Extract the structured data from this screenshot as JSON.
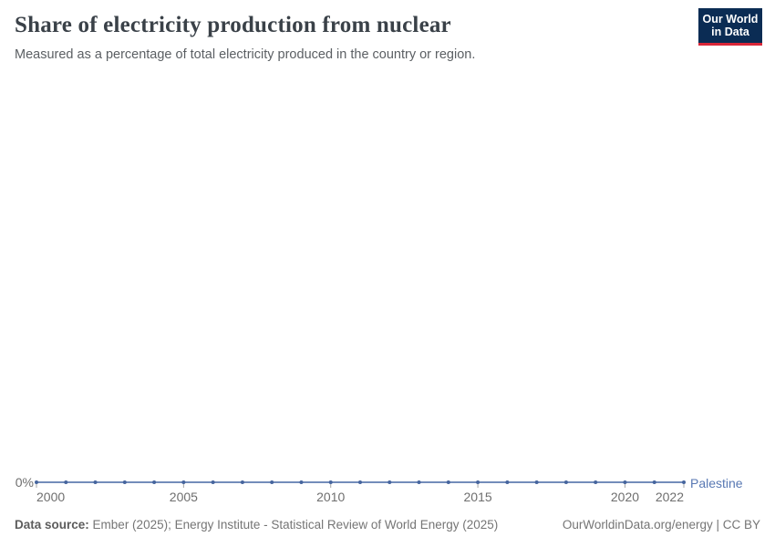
{
  "header": {
    "title": "Share of electricity production from nuclear",
    "subtitle": "Measured as a percentage of total electricity produced in the country or region.",
    "logo": {
      "line1": "Our World",
      "line2": "in Data"
    }
  },
  "chart_data": {
    "type": "line",
    "title": "Share of electricity production from nuclear",
    "xlabel": "",
    "ylabel": "",
    "x": [
      2000,
      2001,
      2002,
      2003,
      2004,
      2005,
      2006,
      2007,
      2008,
      2009,
      2010,
      2011,
      2012,
      2013,
      2014,
      2015,
      2016,
      2017,
      2018,
      2019,
      2020,
      2021,
      2022
    ],
    "series": [
      {
        "name": "Palestine",
        "color": "#4C6A9C",
        "values": [
          0,
          0,
          0,
          0,
          0,
          0,
          0,
          0,
          0,
          0,
          0,
          0,
          0,
          0,
          0,
          0,
          0,
          0,
          0,
          0,
          0,
          0,
          0
        ]
      }
    ],
    "x_ticks": [
      2000,
      2005,
      2010,
      2015,
      2020,
      2022
    ],
    "y_tick_labels": [
      "0%"
    ],
    "xlim": [
      2000,
      2022
    ],
    "ylim": [
      0,
      0
    ],
    "grid": false,
    "legend_position": "end-of-line"
  },
  "axis": {
    "zero_label": "0%"
  },
  "footer": {
    "source_label": "Data source:",
    "source_text": "Ember (2025); Energy Institute - Statistical Review of World Energy (2025)",
    "link": "OurWorldinData.org/energy | CC BY"
  },
  "colors": {
    "accent_blue": "#4C6A9C",
    "line_stroke": "#5f7cb0",
    "marker_fill": "#46659e",
    "tick_mark": "#a6a6a6",
    "logo_navy": "#0b2c54",
    "logo_red": "#d92638"
  }
}
